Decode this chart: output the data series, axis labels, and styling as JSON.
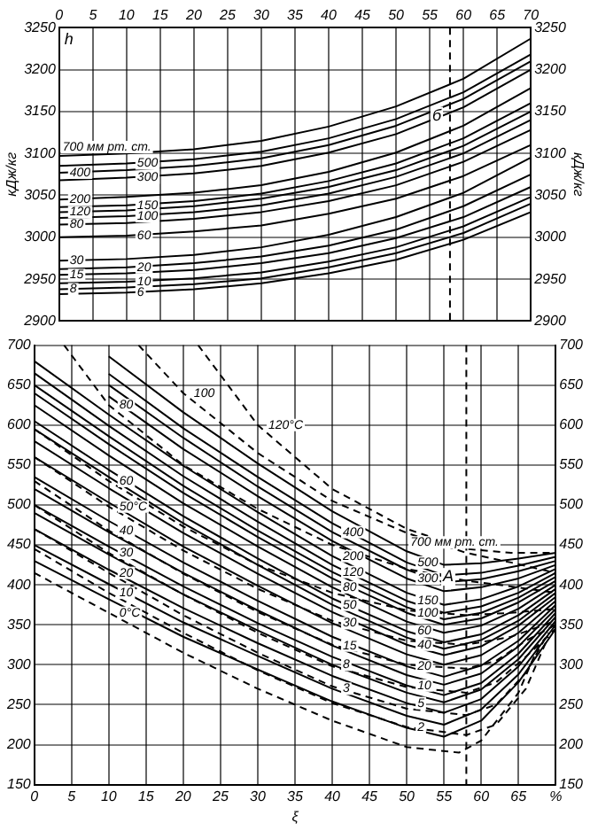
{
  "chart_data": [
    {
      "type": "line",
      "ylabel": "кДж/кг",
      "y2label": "кДж/кг",
      "annotations": [
        "h",
        "б"
      ],
      "x": [
        0,
        10,
        20,
        30,
        40,
        50,
        60,
        70
      ],
      "xlim": [
        0,
        70
      ],
      "x2lim": [
        0,
        70
      ],
      "x2ticks": [
        0,
        5,
        10,
        15,
        20,
        25,
        30,
        35,
        40,
        45,
        50,
        55,
        60,
        65,
        70
      ],
      "ylim": [
        2900,
        3250
      ],
      "yticks": [
        2900,
        2950,
        3000,
        3050,
        3100,
        3150,
        3200,
        3250
      ],
      "y2lim": [
        2900,
        3250
      ],
      "y2ticks": [
        2900,
        2950,
        3000,
        3050,
        3100,
        3150,
        3200,
        3250
      ],
      "grid": true,
      "legend": false,
      "ref_lines": [
        {
          "axis": "x",
          "value": 58,
          "line_style": "dashed"
        }
      ],
      "series": [
        {
          "name": "700 мм рт. ст.",
          "color": "#000000",
          "values": [
            3097,
            3100,
            3105,
            3115,
            3132,
            3156,
            3189,
            3237
          ]
        },
        {
          "name": "500",
          "color": "#000000",
          "values": [
            3085,
            3088,
            3093,
            3102,
            3118,
            3141,
            3173,
            3218
          ]
        },
        {
          "name": "400",
          "color": "#000000",
          "values": [
            3077,
            3080,
            3085,
            3094,
            3110,
            3133,
            3165,
            3210
          ]
        },
        {
          "name": "300",
          "color": "#000000",
          "values": [
            3068,
            3071,
            3076,
            3085,
            3101,
            3123,
            3155,
            3200
          ]
        },
        {
          "name": "200",
          "color": "#000000",
          "values": [
            3045,
            3048,
            3053,
            3062,
            3078,
            3101,
            3133,
            3178
          ]
        },
        {
          "name": "150",
          "color": "#000000",
          "values": [
            3036,
            3038,
            3043,
            3052,
            3067,
            3088,
            3118,
            3160
          ]
        },
        {
          "name": "120",
          "color": "#000000",
          "values": [
            3030,
            3032,
            3037,
            3046,
            3060,
            3080,
            3109,
            3150
          ]
        },
        {
          "name": "100",
          "color": "#000000",
          "values": [
            3023,
            3025,
            3030,
            3038,
            3052,
            3072,
            3100,
            3140
          ]
        },
        {
          "name": "80",
          "color": "#000000",
          "values": [
            3015,
            3017,
            3022,
            3030,
            3043,
            3062,
            3090,
            3128
          ]
        },
        {
          "name": "60",
          "color": "#000000",
          "values": [
            3000,
            3002,
            3007,
            3014,
            3028,
            3046,
            3073,
            3110
          ]
        },
        {
          "name": "30",
          "color": "#000000",
          "values": [
            2972,
            2974,
            2979,
            2988,
            3003,
            3024,
            3053,
            3095
          ]
        },
        {
          "name": "20",
          "color": "#000000",
          "values": [
            2962,
            2964,
            2969,
            2977,
            2990,
            3009,
            3037,
            3075
          ]
        },
        {
          "name": "15",
          "color": "#000000",
          "values": [
            2955,
            2957,
            2961,
            2969,
            2981,
            2999,
            3024,
            3060
          ]
        },
        {
          "name": "10",
          "color": "#000000",
          "values": [
            2945,
            2947,
            2951,
            2958,
            2971,
            2988,
            3013,
            3048
          ]
        },
        {
          "name": "8",
          "color": "#000000",
          "values": [
            2938,
            2940,
            2944,
            2951,
            2964,
            2981,
            3005,
            3040
          ]
        },
        {
          "name": "6",
          "color": "#000000",
          "values": [
            2932,
            2934,
            2938,
            2945,
            2957,
            2973,
            2997,
            3030
          ]
        }
      ]
    },
    {
      "type": "line",
      "xlabel": "ξ",
      "annotations": [
        {
          "text": "A",
          "x": 57,
          "y": 410
        }
      ],
      "x": [
        0,
        10,
        20,
        30,
        40,
        50,
        55,
        60,
        65,
        70
      ],
      "xlim": [
        0,
        70
      ],
      "xticks": [
        0,
        5,
        10,
        15,
        20,
        25,
        30,
        35,
        40,
        45,
        50,
        55,
        60,
        65,
        {
          "value": 70,
          "label": "%"
        }
      ],
      "ylim": [
        150,
        700
      ],
      "yticks": [
        150,
        200,
        250,
        300,
        350,
        400,
        450,
        500,
        550,
        600,
        650,
        700
      ],
      "y2lim": [
        150,
        700
      ],
      "y2ticks": [
        150,
        200,
        250,
        300,
        350,
        400,
        450,
        500,
        550,
        600,
        650,
        700
      ],
      "grid": true,
      "legend": false,
      "ref_lines": [
        {
          "axis": "x",
          "value": 58,
          "line_style": "dashed"
        }
      ],
      "series": [
        {
          "name": "700 мм рт. ст.",
          "color": "#000000",
          "values": [
            null,
            686,
            616,
            552,
            492,
            442,
            425,
            427,
            433,
            440
          ]
        },
        {
          "name": "500",
          "color": "#000000",
          "values": [
            null,
            664,
            596,
            535,
            477,
            428,
            412,
            415,
            424,
            435
          ]
        },
        {
          "name": "400",
          "color": "#000000",
          "values": [
            null,
            650,
            584,
            523,
            466,
            419,
            403,
            407,
            417,
            430
          ]
        },
        {
          "name": "300",
          "color": "#000000",
          "values": [
            null,
            636,
            570,
            511,
            455,
            408,
            392,
            397,
            408,
            425
          ]
        },
        {
          "name": "200",
          "color": "#000000",
          "values": [
            680,
            613,
            549,
            491,
            436,
            390,
            375,
            382,
            398,
            420
          ]
        },
        {
          "name": "150",
          "color": "#000000",
          "values": [
            665,
            599,
            536,
            479,
            425,
            380,
            365,
            373,
            390,
            415
          ]
        },
        {
          "name": "120",
          "color": "#000000",
          "values": [
            650,
            586,
            524,
            468,
            416,
            372,
            357,
            365,
            384,
            410
          ]
        },
        {
          "name": "100",
          "color": "#000000",
          "values": [
            640,
            576,
            515,
            460,
            408,
            365,
            350,
            358,
            378,
            405
          ]
        },
        {
          "name": "80",
          "color": "#000000",
          "values": [
            625,
            562,
            502,
            448,
            397,
            354,
            340,
            349,
            370,
            400
          ]
        },
        {
          "name": "60",
          "color": "#000000",
          "values": [
            605,
            544,
            486,
            433,
            383,
            342,
            328,
            338,
            362,
            395
          ]
        },
        {
          "name": "50",
          "color": "#000000",
          "values": [
            595,
            535,
            477,
            425,
            375,
            334,
            320,
            331,
            355,
            390
          ]
        },
        {
          "name": "40",
          "color": "#000000",
          "values": [
            580,
            521,
            465,
            414,
            366,
            325,
            312,
            323,
            349,
            385
          ]
        },
        {
          "name": "30",
          "color": "#000000",
          "values": [
            560,
            503,
            448,
            399,
            352,
            313,
            300,
            312,
            340,
            380
          ]
        },
        {
          "name": "20",
          "color": "#000000",
          "values": [
            535,
            480,
            428,
            380,
            335,
            298,
            285,
            299,
            330,
            375
          ]
        },
        {
          "name": "15",
          "color": "#000000",
          "values": [
            520,
            466,
            415,
            368,
            324,
            287,
            275,
            289,
            323,
            370
          ]
        },
        {
          "name": "10",
          "color": "#000000",
          "values": [
            500,
            448,
            398,
            352,
            310,
            274,
            262,
            277,
            314,
            365
          ]
        },
        {
          "name": "8",
          "color": "#000000",
          "values": [
            490,
            438,
            388,
            343,
            300,
            265,
            253,
            269,
            307,
            360
          ]
        },
        {
          "name": "5",
          "color": "#000000",
          "values": [
            470,
            419,
            371,
            327,
            286,
            252,
            240,
            257,
            298,
            355
          ]
        },
        {
          "name": "3",
          "color": "#000000",
          "values": [
            450,
            401,
            353,
            311,
            270,
            236,
            225,
            244,
            288,
            350
          ]
        },
        {
          "name": "2",
          "color": "#000000",
          "values": [
            430,
            382,
            335,
            294,
            254,
            221,
            210,
            230,
            278,
            345
          ]
        },
        {
          "name": "0°C",
          "color": "#000000",
          "line_style": "dashed",
          "x": [
            0,
            10,
            20,
            30,
            40,
            50,
            57,
            60,
            65,
            68
          ],
          "values": [
            415,
            365,
            315,
            270,
            230,
            197,
            190,
            205,
            265,
            330
          ]
        },
        {
          "name": "10",
          "color": "#000000",
          "line_style": "dashed",
          "x": [
            0,
            10,
            20,
            30,
            40,
            50,
            58,
            62,
            66,
            69
          ],
          "values": [
            445,
            390,
            340,
            293,
            252,
            222,
            212,
            225,
            270,
            335
          ]
        },
        {
          "name": "20",
          "color": "#000000",
          "line_style": "dashed",
          "x": [
            0,
            10,
            20,
            30,
            40,
            50,
            58,
            62,
            66,
            69
          ],
          "values": [
            470,
            415,
            362,
            315,
            273,
            245,
            237,
            250,
            290,
            340
          ]
        },
        {
          "name": "30",
          "color": "#000000",
          "line_style": "dashed",
          "x": [
            0,
            10,
            20,
            30,
            40,
            50,
            58,
            62,
            66,
            70
          ],
          "values": [
            500,
            440,
            388,
            340,
            298,
            272,
            265,
            278,
            310,
            345
          ]
        },
        {
          "name": "40",
          "color": "#000000",
          "line_style": "dashed",
          "x": [
            0,
            10,
            20,
            30,
            40,
            50,
            58,
            62,
            66,
            70
          ],
          "values": [
            530,
            468,
            414,
            366,
            325,
            300,
            295,
            305,
            330,
            350
          ]
        },
        {
          "name": "50°C",
          "color": "#000000",
          "line_style": "dashed",
          "x": [
            0,
            10,
            20,
            30,
            40,
            50,
            58,
            64,
            70
          ],
          "values": [
            560,
            498,
            443,
            395,
            355,
            330,
            325,
            335,
            355
          ]
        },
        {
          "name": "60",
          "color": "#000000",
          "line_style": "dashed",
          "x": [
            0,
            10,
            20,
            30,
            40,
            50,
            58,
            64,
            70
          ],
          "values": [
            595,
            530,
            473,
            425,
            390,
            368,
            362,
            365,
            370
          ]
        },
        {
          "name": "80",
          "color": "#000000",
          "line_style": "dashed",
          "x": [
            4,
            10,
            20,
            30,
            40,
            50,
            58,
            64,
            70
          ],
          "values": [
            700,
            625,
            550,
            495,
            450,
            420,
            405,
            398,
            390
          ]
        },
        {
          "name": "100",
          "color": "#000000",
          "line_style": "dashed",
          "x": [
            14,
            20,
            30,
            40,
            50,
            58,
            64,
            70
          ],
          "values": [
            700,
            640,
            565,
            505,
            465,
            440,
            428,
            415
          ]
        },
        {
          "name": "120°C",
          "color": "#000000",
          "line_style": "dashed",
          "x": [
            22,
            30,
            40,
            50,
            58,
            64,
            70
          ],
          "values": [
            700,
            600,
            520,
            470,
            445,
            440,
            440
          ]
        }
      ]
    }
  ]
}
